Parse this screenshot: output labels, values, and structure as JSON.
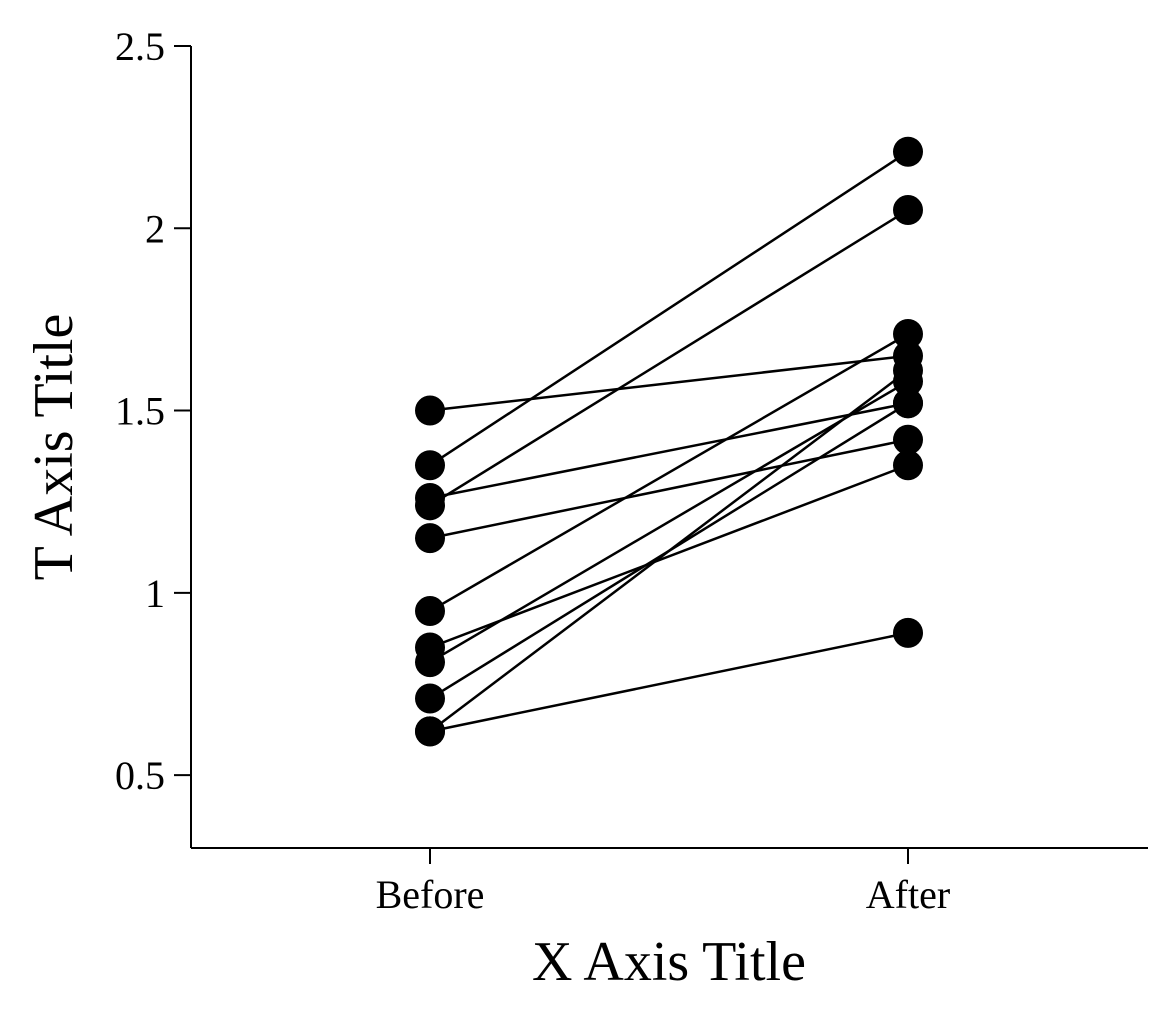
{
  "chart_data": {
    "type": "line",
    "xlabel": "X Axis Title",
    "ylabel": "T Axis Title",
    "categories": [
      "Before",
      "After"
    ],
    "y_ticks": [
      "0.5",
      "1",
      "1.5",
      "2",
      "2.5"
    ],
    "ylim": [
      0.3,
      2.5
    ],
    "grid": false,
    "legend": "none",
    "colors": {
      "line": "#000000",
      "marker": "#000000",
      "axis": "#000000"
    },
    "series": [
      {
        "values": [
          1.5,
          1.65
        ]
      },
      {
        "values": [
          1.35,
          2.21
        ]
      },
      {
        "values": [
          1.26,
          1.52
        ]
      },
      {
        "values": [
          1.24,
          2.05
        ]
      },
      {
        "values": [
          1.15,
          1.42
        ]
      },
      {
        "values": [
          0.95,
          1.71
        ]
      },
      {
        "values": [
          0.85,
          1.35
        ]
      },
      {
        "values": [
          0.81,
          1.58
        ]
      },
      {
        "values": [
          0.71,
          1.52
        ]
      },
      {
        "values": [
          0.62,
          1.61
        ]
      },
      {
        "values": [
          0.62,
          0.89
        ]
      }
    ]
  }
}
